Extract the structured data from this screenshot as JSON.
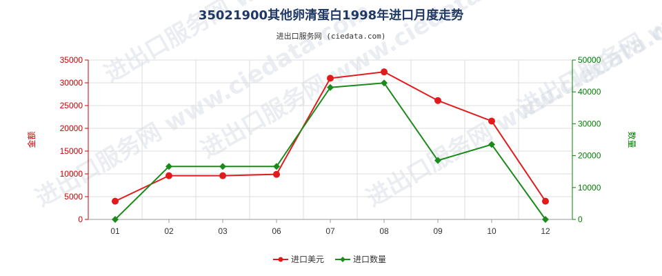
{
  "chart_data": {
    "type": "line",
    "title": "35021900其他卵清蛋白1998年进口月度走势",
    "subtitle": "进出口服务网 (ciedata.com)",
    "categories": [
      "01",
      "02",
      "03",
      "06",
      "07",
      "08",
      "09",
      "10",
      "12"
    ],
    "y_left": {
      "label": "金额",
      "range": [
        0,
        35000
      ],
      "ticks": [
        0,
        5000,
        10000,
        15000,
        20000,
        25000,
        30000,
        35000
      ],
      "color": "#cc0000"
    },
    "y_right": {
      "label": "数量",
      "range": [
        0,
        50000
      ],
      "ticks": [
        0,
        10000,
        20000,
        30000,
        40000,
        50000
      ],
      "color": "#008000"
    },
    "grid": true,
    "legend_position": "bottom-center",
    "series": [
      {
        "name": "进口美元",
        "axis": "left",
        "color": "#e31a1c",
        "marker": "circle",
        "values": [
          4000,
          9600,
          9600,
          9900,
          31000,
          32400,
          26100,
          21600,
          4000
        ]
      },
      {
        "name": "进口数量",
        "axis": "right",
        "color": "#1a8a1a",
        "marker": "diamond",
        "values": [
          0,
          16600,
          16600,
          16600,
          41400,
          42800,
          18500,
          23500,
          0
        ]
      }
    ],
    "watermark": "进出口服务网 www.ciedata.com"
  }
}
